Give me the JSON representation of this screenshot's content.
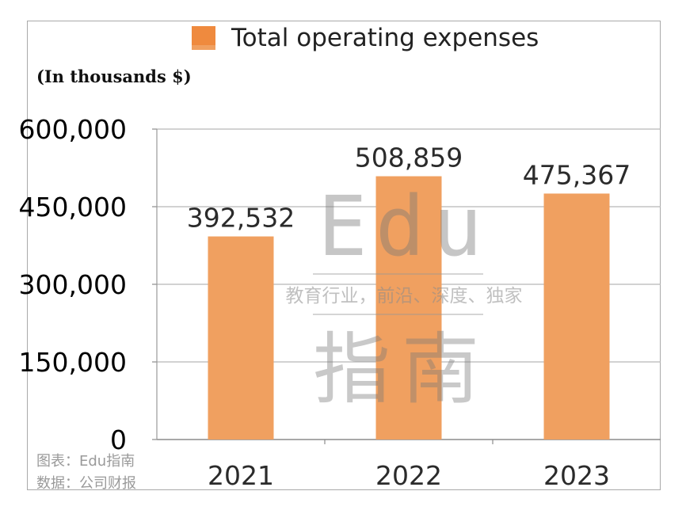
{
  "chart_data": {
    "type": "bar",
    "categories": [
      "2021",
      "2022",
      "2023"
    ],
    "series": [
      {
        "name": "Total operating expenses",
        "values": [
          392532,
          508859,
          475367
        ],
        "labels": [
          "392,532",
          "508,859",
          "475,367"
        ]
      }
    ],
    "units_label": "(In thousands $)",
    "yticks": [
      0,
      150000,
      300000,
      450000,
      600000
    ],
    "ytick_labels": [
      "0",
      "150,000",
      "300,000",
      "450,000",
      "600,000"
    ],
    "ylim": [
      0,
      600000
    ],
    "grid": true,
    "legend_position": "top",
    "bar_color": "#f0a060",
    "legend_color": "#ef8a3e"
  },
  "watermark": {
    "logo_text": "Edu",
    "tagline": "教育行业，前沿、深度、独家",
    "brand_cn": "指南"
  },
  "credits": {
    "chart_by": "图表：Edu指南",
    "source": "数据：公司财报"
  }
}
